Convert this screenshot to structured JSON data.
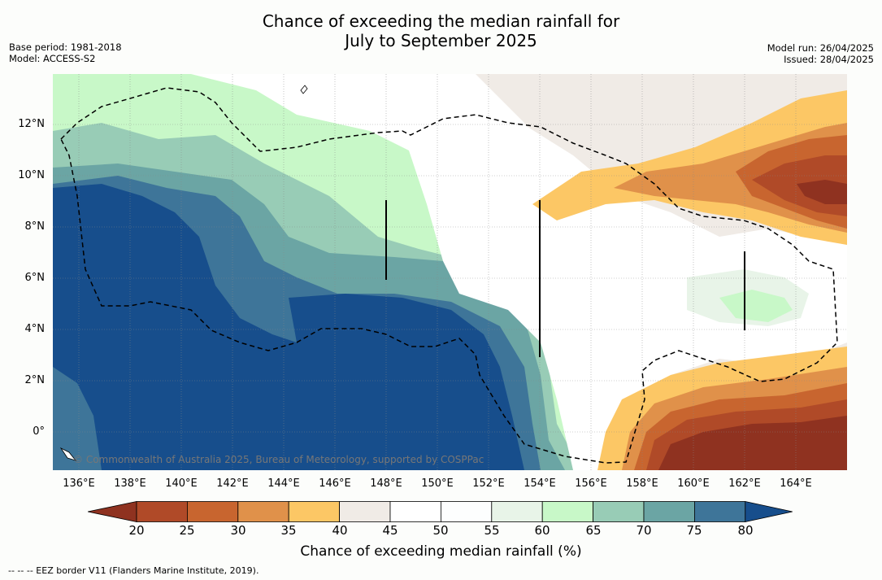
{
  "title": {
    "line1": "Chance of exceeding the median rainfall for",
    "line2": "July to September 2025"
  },
  "meta_left": {
    "base_period": "Base period: 1981-2018",
    "model": "Model: ACCESS-S2"
  },
  "meta_right": {
    "model_run": "Model run: 26/04/2025",
    "issued": "Issued: 28/04/2025"
  },
  "map": {
    "lat_labels": [
      "12°N",
      "10°N",
      "8°N",
      "6°N",
      "4°N",
      "2°N",
      "0°"
    ],
    "lon_labels": [
      "136°E",
      "138°E",
      "140°E",
      "142°E",
      "144°E",
      "146°E",
      "148°E",
      "150°E",
      "152°E",
      "154°E",
      "156°E",
      "158°E",
      "160°E",
      "162°E",
      "164°E"
    ],
    "copyright": "© Commonwealth of Australia 2025, Bureau of Meteorology, supported by COSPPac"
  },
  "colorbar": {
    "ticks": [
      "20",
      "25",
      "30",
      "35",
      "40",
      "45",
      "50",
      "55",
      "60",
      "65",
      "70",
      "75",
      "80"
    ],
    "colors": [
      "#8f3220",
      "#b04a28",
      "#c8652f",
      "#e0914a",
      "#fcc765",
      "#f0ebe6",
      "#ffffff",
      "#fdfefe",
      "#e8f4e8",
      "#c8f8c8",
      "#98ccb6",
      "#6ba5a4",
      "#3e7599",
      "#174e8c"
    ],
    "label": "Chance of exceeding median rainfall (%)"
  },
  "footer": "-- -- -- EEZ border V11 (Flanders Marine Institute, 2019)."
}
